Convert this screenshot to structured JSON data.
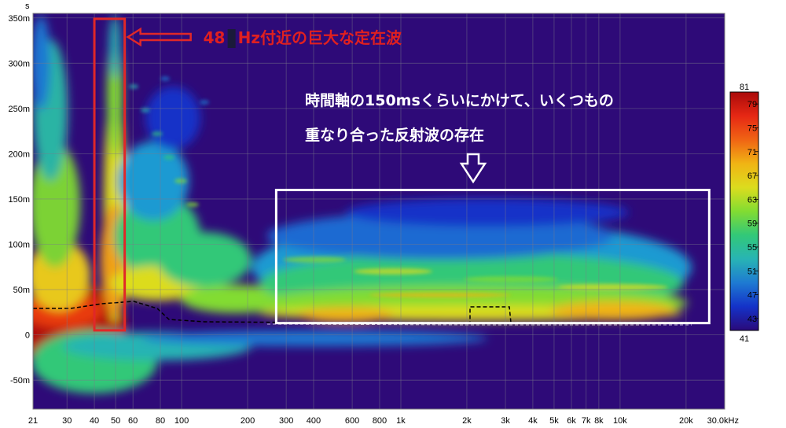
{
  "chart_data": {
    "type": "heatmap",
    "title": "",
    "x_axis": {
      "scale": "log",
      "range": [
        21,
        30000
      ],
      "unit_label": "kHz",
      "ticks": [
        {
          "value": 21,
          "label": "21"
        },
        {
          "value": 30,
          "label": "30"
        },
        {
          "value": 40,
          "label": "40"
        },
        {
          "value": 50,
          "label": "50"
        },
        {
          "value": 60,
          "label": "60"
        },
        {
          "value": 80,
          "label": "80"
        },
        {
          "value": 100,
          "label": "100"
        },
        {
          "value": 200,
          "label": "200"
        },
        {
          "value": 300,
          "label": "300"
        },
        {
          "value": 400,
          "label": "400"
        },
        {
          "value": 600,
          "label": "600"
        },
        {
          "value": 800,
          "label": "800"
        },
        {
          "value": 1000,
          "label": "1k"
        },
        {
          "value": 2000,
          "label": "2k"
        },
        {
          "value": 3000,
          "label": "3k"
        },
        {
          "value": 4000,
          "label": "4k"
        },
        {
          "value": 5000,
          "label": "5k"
        },
        {
          "value": 6000,
          "label": "6k"
        },
        {
          "value": 7000,
          "label": "7k"
        },
        {
          "value": 8000,
          "label": "8k"
        },
        {
          "value": 10000,
          "label": "10k"
        },
        {
          "value": 20000,
          "label": "20k"
        },
        {
          "value": 30000,
          "label": "30.0kHz"
        }
      ]
    },
    "y_axis": {
      "unit_label": "s",
      "range": [
        -0.082,
        0.355
      ],
      "ticks": [
        {
          "value": 0.35,
          "label": "350m"
        },
        {
          "value": 0.3,
          "label": "300m"
        },
        {
          "value": 0.25,
          "label": "250m"
        },
        {
          "value": 0.2,
          "label": "200m"
        },
        {
          "value": 0.15,
          "label": "150m"
        },
        {
          "value": 0.1,
          "label": "100m"
        },
        {
          "value": 0.05,
          "label": "50m"
        },
        {
          "value": 0.0,
          "label": "0"
        },
        {
          "value": -0.05,
          "label": "-50m"
        }
      ]
    },
    "colorbar": {
      "min": 41,
      "max": 81,
      "ticks": [
        81,
        79,
        75,
        71,
        67,
        63,
        59,
        55,
        51,
        47,
        43,
        41
      ],
      "colors": [
        "#2a0a7a",
        "#1432c8",
        "#1e7ad2",
        "#28b4b4",
        "#32c878",
        "#82dc32",
        "#dcdc1e",
        "#f0b414",
        "#f06414",
        "#e62814",
        "#aa0a0a"
      ]
    },
    "grid": true,
    "background_color": "#2e0a78",
    "annotations": [
      {
        "type": "box",
        "color": "#e02828",
        "x_range": [
          40,
          55
        ],
        "y_range": [
          0.005,
          0.349
        ]
      },
      {
        "type": "arrow",
        "color": "#e02828",
        "direction": "left",
        "text_left": "48",
        "text_right": "Hz付近の巨大な定在波"
      },
      {
        "type": "box",
        "color": "#ffffff",
        "x_range": [
          270,
          25500
        ],
        "y_range": [
          0.013,
          0.16
        ]
      },
      {
        "type": "text",
        "color": "#ffffff",
        "lines": [
          "時間軸の150msくらいにかけて、いくつもの",
          "重なり合った反射波の存在"
        ]
      },
      {
        "type": "arrow",
        "color": "#ffffff",
        "direction": "down"
      }
    ]
  }
}
